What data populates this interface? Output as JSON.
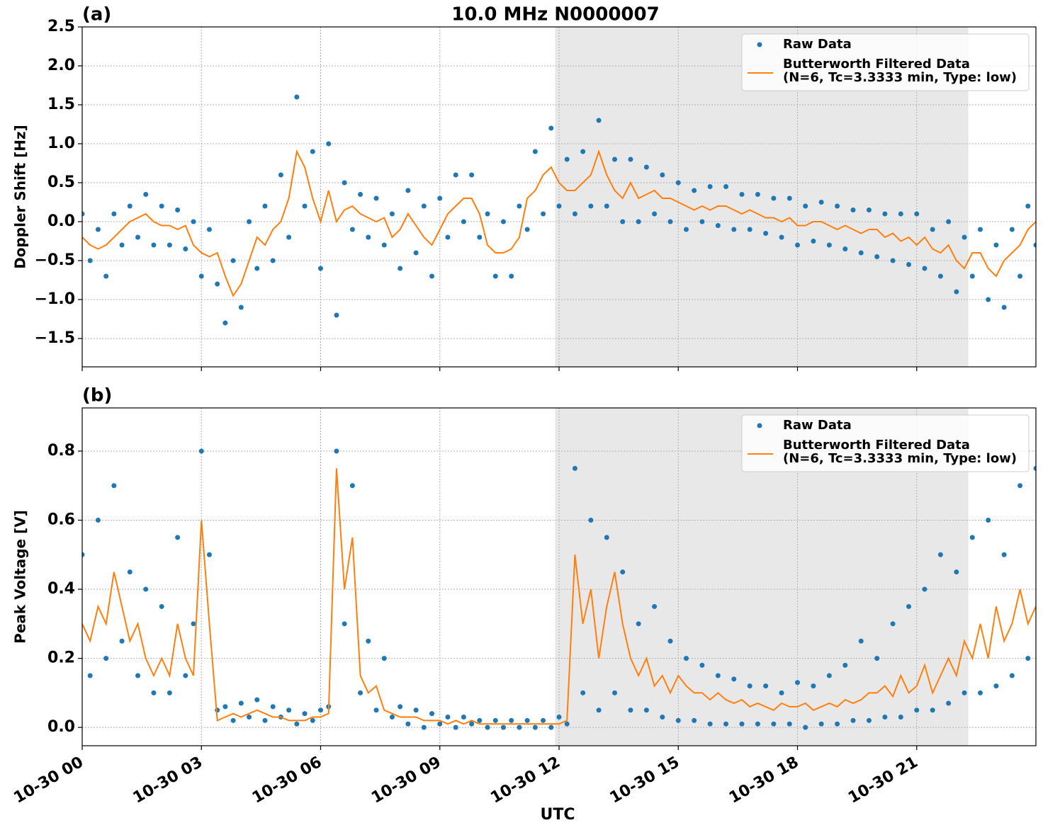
{
  "chart_data": [
    {
      "type": "scatter_line",
      "title": "10.0 MHz N0000007",
      "panel_label": "(a)",
      "y_label": "Doppler Shift [Hz]",
      "xlim": [
        0,
        24
      ],
      "xticks": [
        0,
        3,
        6,
        9,
        12,
        15,
        18,
        21
      ],
      "ylim": [
        -1.864,
        2.5
      ],
      "yticks": [
        {
          "value": -1.5,
          "label": "−1.5"
        },
        {
          "value": -1.0,
          "label": "−1.0"
        },
        {
          "value": -0.5,
          "label": "−0.5"
        },
        {
          "value": 0,
          "label": "0.0"
        },
        {
          "value": 0.5,
          "label": "0.5"
        },
        {
          "value": 1.0,
          "label": "1.0"
        },
        {
          "value": 1.5,
          "label": "1.5"
        },
        {
          "value": 2.0,
          "label": "2.0"
        },
        {
          "value": 2.5,
          "label": "2.5"
        }
      ],
      "grid": true,
      "legend": "upper right",
      "shaded_span": [
        11.9,
        22.3
      ],
      "x": [
        0,
        0.2,
        0.4,
        0.6,
        0.8,
        1,
        1.2,
        1.4,
        1.6,
        1.8,
        2,
        2.2,
        2.4,
        2.6,
        2.8,
        3,
        3.2,
        3.4,
        3.6,
        3.8,
        4,
        4.2,
        4.4,
        4.6,
        4.8,
        5,
        5.2,
        5.4,
        5.6,
        5.8,
        6,
        6.2,
        6.4,
        6.6,
        6.8,
        7,
        7.2,
        7.4,
        7.6,
        7.8,
        8,
        8.2,
        8.4,
        8.6,
        8.8,
        9,
        9.2,
        9.4,
        9.6,
        9.8,
        10,
        10.2,
        10.4,
        10.6,
        10.8,
        11,
        11.2,
        11.4,
        11.6,
        11.8,
        12,
        12.2,
        12.4,
        12.6,
        12.8,
        13,
        13.2,
        13.4,
        13.6,
        13.8,
        14,
        14.2,
        14.4,
        14.6,
        14.8,
        15,
        15.2,
        15.4,
        15.6,
        15.8,
        16,
        16.2,
        16.4,
        16.6,
        16.8,
        17,
        17.2,
        17.4,
        17.6,
        17.8,
        18,
        18.2,
        18.4,
        18.6,
        18.8,
        19,
        19.2,
        19.4,
        19.6,
        19.8,
        20,
        20.2,
        20.4,
        20.6,
        20.8,
        21,
        21.2,
        21.4,
        21.6,
        21.8,
        22,
        22.2,
        22.4,
        22.6,
        22.8,
        23,
        23.2,
        23.4,
        23.6,
        23.8,
        24
      ],
      "series": [
        {
          "name": "Raw Data",
          "kind": "points",
          "color": "#1f77b4",
          "values": [
            0.1,
            -0.5,
            -0.1,
            -0.7,
            0.1,
            -0.3,
            0.2,
            -0.2,
            0.35,
            -0.3,
            0.2,
            -0.3,
            0.15,
            -0.35,
            0.0,
            -0.7,
            -0.1,
            -0.8,
            -1.3,
            -0.5,
            -1.1,
            0.0,
            -0.6,
            0.2,
            -0.5,
            0.6,
            -0.2,
            1.6,
            0.2,
            0.9,
            -0.6,
            1.0,
            -1.2,
            0.5,
            -0.1,
            0.35,
            -0.2,
            0.3,
            -0.3,
            0.1,
            -0.6,
            0.4,
            -0.4,
            0.2,
            -0.7,
            0.3,
            -0.2,
            0.6,
            0.0,
            0.6,
            -0.2,
            0.1,
            -0.7,
            0.0,
            -0.7,
            0.2,
            -0.1,
            0.9,
            0.1,
            1.2,
            0.2,
            0.8,
            0.1,
            0.9,
            0.2,
            1.3,
            0.2,
            0.8,
            0.0,
            0.8,
            0.0,
            0.7,
            0.1,
            0.6,
            0.0,
            0.5,
            -0.1,
            0.4,
            0.0,
            0.45,
            -0.05,
            0.45,
            -0.1,
            0.35,
            -0.1,
            0.35,
            -0.15,
            0.3,
            -0.2,
            0.3,
            -0.3,
            0.2,
            -0.25,
            0.25,
            -0.3,
            0.2,
            -0.35,
            0.15,
            -0.4,
            0.15,
            -0.45,
            0.1,
            -0.5,
            0.1,
            -0.55,
            0.1,
            -0.6,
            -0.1,
            -0.7,
            0.0,
            -0.9,
            -0.2,
            -0.7,
            -0.1,
            -1.0,
            -0.3,
            -1.1,
            -0.1,
            -0.7,
            0.2,
            -0.3
          ]
        },
        {
          "name": "Butterworth Filtered Data\n(N=6, Tc=3.3333 min, Type: low)",
          "kind": "line",
          "color": "#ff7f0e",
          "values": [
            -0.2,
            -0.3,
            -0.35,
            -0.3,
            -0.2,
            -0.1,
            0.0,
            0.05,
            0.1,
            0.0,
            -0.05,
            -0.05,
            -0.1,
            -0.05,
            -0.3,
            -0.4,
            -0.45,
            -0.4,
            -0.7,
            -0.95,
            -0.8,
            -0.5,
            -0.2,
            -0.3,
            -0.1,
            0.0,
            0.3,
            0.9,
            0.7,
            0.3,
            0.0,
            0.4,
            0.0,
            0.15,
            0.2,
            0.1,
            0.05,
            0.0,
            0.05,
            -0.2,
            -0.1,
            0.1,
            -0.05,
            -0.2,
            -0.3,
            -0.1,
            0.1,
            0.2,
            0.3,
            0.3,
            0.1,
            -0.3,
            -0.4,
            -0.4,
            -0.35,
            -0.2,
            0.3,
            0.4,
            0.6,
            0.7,
            0.5,
            0.4,
            0.4,
            0.5,
            0.6,
            0.9,
            0.6,
            0.4,
            0.3,
            0.5,
            0.3,
            0.35,
            0.4,
            0.3,
            0.3,
            0.25,
            0.2,
            0.15,
            0.2,
            0.15,
            0.2,
            0.2,
            0.15,
            0.1,
            0.15,
            0.1,
            0.05,
            0.05,
            0.0,
            0.05,
            -0.05,
            -0.05,
            0.0,
            0.0,
            -0.05,
            -0.1,
            -0.05,
            -0.1,
            -0.15,
            -0.1,
            -0.1,
            -0.2,
            -0.15,
            -0.25,
            -0.2,
            -0.3,
            -0.2,
            -0.35,
            -0.4,
            -0.3,
            -0.5,
            -0.6,
            -0.4,
            -0.4,
            -0.6,
            -0.7,
            -0.5,
            -0.4,
            -0.3,
            -0.1,
            0.0
          ]
        }
      ]
    },
    {
      "type": "scatter_line",
      "panel_label": "(b)",
      "y_label": "Peak Voltage [V]",
      "x_label": "UTC",
      "xlim": [
        0,
        24
      ],
      "xticks": [
        {
          "value": 0,
          "label": "10-30 00"
        },
        {
          "value": 3,
          "label": "10-30 03"
        },
        {
          "value": 6,
          "label": "10-30 06"
        },
        {
          "value": 9,
          "label": "10-30 09"
        },
        {
          "value": 12,
          "label": "10-30 12"
        },
        {
          "value": 15,
          "label": "10-30 15"
        },
        {
          "value": 18,
          "label": "10-30 18"
        },
        {
          "value": 21,
          "label": "10-30 21"
        }
      ],
      "ylim": [
        -0.053,
        0.925
      ],
      "yticks": [
        {
          "value": 0,
          "label": "0.0"
        },
        {
          "value": 0.2,
          "label": "0.2"
        },
        {
          "value": 0.4,
          "label": "0.4"
        },
        {
          "value": 0.6,
          "label": "0.6"
        },
        {
          "value": 0.8,
          "label": "0.8"
        }
      ],
      "grid": true,
      "legend": "upper right",
      "shaded_span": [
        11.9,
        22.3
      ],
      "x": [
        0,
        0.2,
        0.4,
        0.6,
        0.8,
        1,
        1.2,
        1.4,
        1.6,
        1.8,
        2,
        2.2,
        2.4,
        2.6,
        2.8,
        3,
        3.2,
        3.4,
        3.6,
        3.8,
        4,
        4.2,
        4.4,
        4.6,
        4.8,
        5,
        5.2,
        5.4,
        5.6,
        5.8,
        6,
        6.2,
        6.4,
        6.6,
        6.8,
        7,
        7.2,
        7.4,
        7.6,
        7.8,
        8,
        8.2,
        8.4,
        8.6,
        8.8,
        9,
        9.2,
        9.4,
        9.6,
        9.8,
        10,
        10.2,
        10.4,
        10.6,
        10.8,
        11,
        11.2,
        11.4,
        11.6,
        11.8,
        12,
        12.2,
        12.4,
        12.6,
        12.8,
        13,
        13.2,
        13.4,
        13.6,
        13.8,
        14,
        14.2,
        14.4,
        14.6,
        14.8,
        15,
        15.2,
        15.4,
        15.6,
        15.8,
        16,
        16.2,
        16.4,
        16.6,
        16.8,
        17,
        17.2,
        17.4,
        17.6,
        17.8,
        18,
        18.2,
        18.4,
        18.6,
        18.8,
        19,
        19.2,
        19.4,
        19.6,
        19.8,
        20,
        20.2,
        20.4,
        20.6,
        20.8,
        21,
        21.2,
        21.4,
        21.6,
        21.8,
        22,
        22.2,
        22.4,
        22.6,
        22.8,
        23,
        23.2,
        23.4,
        23.6,
        23.8,
        24
      ],
      "series": [
        {
          "name": "Raw Data",
          "kind": "points",
          "color": "#1f77b4",
          "values": [
            0.5,
            0.15,
            0.6,
            0.2,
            0.7,
            0.25,
            0.45,
            0.15,
            0.4,
            0.1,
            0.35,
            0.1,
            0.55,
            0.15,
            0.3,
            0.8,
            0.5,
            0.05,
            0.06,
            0.02,
            0.07,
            0.03,
            0.08,
            0.02,
            0.06,
            0.03,
            0.05,
            0.01,
            0.04,
            0.02,
            0.05,
            0.06,
            0.8,
            0.3,
            0.7,
            0.1,
            0.25,
            0.05,
            0.2,
            0.03,
            0.06,
            0.01,
            0.05,
            0.0,
            0.04,
            0.01,
            0.03,
            0.0,
            0.03,
            0.01,
            0.02,
            0.0,
            0.02,
            0.0,
            0.02,
            0.0,
            0.02,
            0.0,
            0.02,
            0.0,
            0.03,
            0.01,
            0.75,
            0.1,
            0.6,
            0.05,
            0.55,
            0.1,
            0.45,
            0.05,
            0.3,
            0.05,
            0.35,
            0.03,
            0.25,
            0.02,
            0.2,
            0.02,
            0.18,
            0.01,
            0.15,
            0.01,
            0.14,
            0.01,
            0.12,
            0.01,
            0.12,
            0.01,
            0.1,
            0.01,
            0.13,
            0.0,
            0.12,
            0.01,
            0.15,
            0.01,
            0.18,
            0.02,
            0.25,
            0.02,
            0.2,
            0.03,
            0.3,
            0.03,
            0.35,
            0.05,
            0.4,
            0.05,
            0.5,
            0.07,
            0.45,
            0.1,
            0.55,
            0.1,
            0.6,
            0.12,
            0.5,
            0.15,
            0.7,
            0.2,
            0.75
          ]
        },
        {
          "name": "Butterworth Filtered Data\n(N=6, Tc=3.3333 min, Type: low)",
          "kind": "line",
          "color": "#ff7f0e",
          "values": [
            0.3,
            0.25,
            0.35,
            0.3,
            0.45,
            0.35,
            0.25,
            0.3,
            0.2,
            0.15,
            0.2,
            0.15,
            0.3,
            0.2,
            0.15,
            0.6,
            0.3,
            0.02,
            0.03,
            0.04,
            0.03,
            0.04,
            0.05,
            0.04,
            0.03,
            0.03,
            0.02,
            0.02,
            0.02,
            0.03,
            0.03,
            0.04,
            0.75,
            0.4,
            0.55,
            0.15,
            0.1,
            0.12,
            0.05,
            0.04,
            0.03,
            0.03,
            0.03,
            0.02,
            0.02,
            0.02,
            0.01,
            0.02,
            0.01,
            0.02,
            0.01,
            0.01,
            0.01,
            0.01,
            0.01,
            0.01,
            0.01,
            0.01,
            0.01,
            0.01,
            0.01,
            0.02,
            0.5,
            0.3,
            0.4,
            0.2,
            0.35,
            0.45,
            0.3,
            0.2,
            0.15,
            0.2,
            0.12,
            0.15,
            0.1,
            0.15,
            0.12,
            0.1,
            0.1,
            0.08,
            0.1,
            0.08,
            0.07,
            0.08,
            0.06,
            0.07,
            0.06,
            0.05,
            0.07,
            0.06,
            0.06,
            0.07,
            0.05,
            0.06,
            0.07,
            0.06,
            0.08,
            0.07,
            0.08,
            0.1,
            0.1,
            0.12,
            0.09,
            0.15,
            0.1,
            0.12,
            0.18,
            0.1,
            0.15,
            0.2,
            0.15,
            0.25,
            0.2,
            0.3,
            0.2,
            0.35,
            0.25,
            0.3,
            0.4,
            0.3,
            0.35
          ]
        }
      ]
    }
  ]
}
